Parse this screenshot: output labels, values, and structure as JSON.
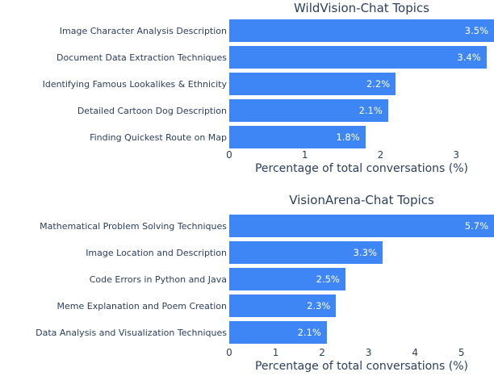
{
  "colors": {
    "bar": "#3E86F6",
    "text": "#2B3F5F",
    "value_label": "#FFFFFF",
    "background": "#FFFFFF"
  },
  "chart_data": [
    {
      "type": "bar",
      "orientation": "horizontal",
      "title": "WildVision-Chat Topics",
      "xlabel": "Percentage of total conversations (%)",
      "ylabel": "",
      "categories": [
        "Image Character Analysis Description",
        "Document Data Extraction Techniques",
        "Identifying Famous Lookalikes & Ethnicity",
        "Detailed Cartoon Dog Description",
        "Finding Quickest Route on Map"
      ],
      "values": [
        3.5,
        3.4,
        2.2,
        2.1,
        1.8
      ],
      "value_labels": [
        "3.5%",
        "3.4%",
        "2.2%",
        "2.1%",
        "1.8%"
      ],
      "xticks": [
        0,
        1,
        2,
        3
      ],
      "xlim": [
        0,
        3.5
      ],
      "grid": false,
      "legend": "none"
    },
    {
      "type": "bar",
      "orientation": "horizontal",
      "title": "VisionArena-Chat Topics",
      "xlabel": "Percentage of total conversations (%)",
      "ylabel": "",
      "categories": [
        "Mathematical Problem Solving Techniques",
        "Image Location and Description",
        "Code Errors in Python and Java",
        "Meme Explanation and Poem Creation",
        "Data Analysis and Visualization Techniques"
      ],
      "values": [
        5.7,
        3.3,
        2.5,
        2.3,
        2.1
      ],
      "value_labels": [
        "5.7%",
        "3.3%",
        "2.5%",
        "2.3%",
        "2.1%"
      ],
      "xticks": [
        0,
        1,
        2,
        3,
        4,
        5
      ],
      "xlim": [
        0,
        5.7
      ],
      "grid": false,
      "legend": "none"
    }
  ]
}
